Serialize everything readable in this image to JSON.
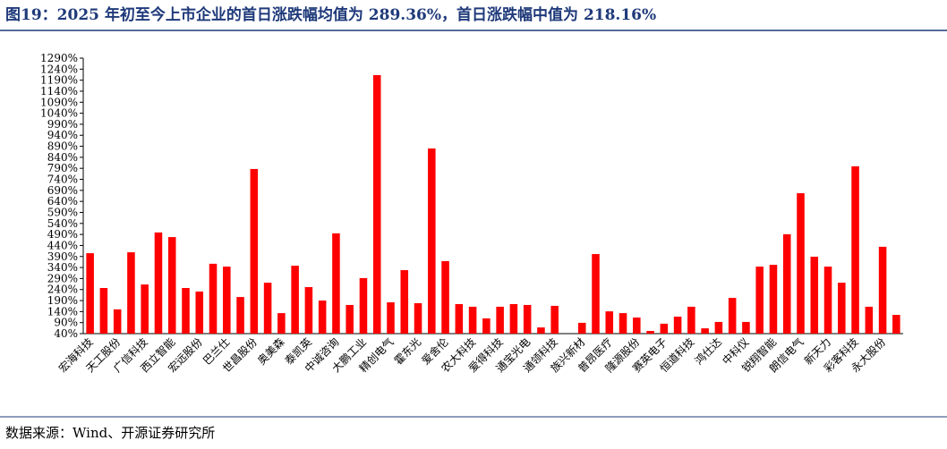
{
  "chart_data": {
    "type": "bar",
    "title": "图19：2025 年初至今上市企业的首日涨跌幅均值为 289.36%，首日涨跌幅中值为 218.16%",
    "source": "数据来源：Wind、开源证券研究所",
    "categories": [
      "宏海科技",
      null,
      "天工股份",
      null,
      "广信科技",
      null,
      "西立智能",
      null,
      "宏远股份",
      null,
      "巴兰仕",
      null,
      "世昌股份",
      null,
      "奥美森",
      null,
      "泰凯英",
      null,
      "中诚咨询",
      null,
      "大鹏工业",
      null,
      "精创电气",
      null,
      "霍东光",
      null,
      "爱舍伦",
      null,
      "农大科技",
      null,
      "爱得科技",
      null,
      "通宝光电",
      null,
      "通领科技",
      null,
      "族兴新材",
      null,
      "普昂医疗",
      null,
      "隆源股份",
      null,
      "赛英电子",
      null,
      "恒道科技",
      null,
      "鸿仕达",
      null,
      "中科仪",
      null,
      "锐翔智能",
      null,
      "朗信电气",
      null,
      "新天力",
      null,
      "彩客科技",
      null,
      "永大股份",
      null
    ],
    "values": [
      405,
      247,
      150,
      409,
      263,
      499,
      478,
      247,
      231,
      357,
      344,
      206,
      787,
      271,
      133,
      348,
      251,
      190,
      495,
      170,
      292,
      1213,
      182,
      328,
      178,
      880,
      369,
      174,
      162,
      109,
      162,
      174,
      170,
      68,
      166,
      40,
      89,
      401,
      141,
      133,
      113,
      52,
      85,
      117,
      162,
      64,
      93,
      202,
      93,
      344,
      352,
      491,
      677,
      389,
      344,
      271,
      799,
      162,
      434,
      125
    ],
    "color": "#ff0000",
    "ylim": [
      40,
      1290
    ],
    "yticks": [
      {
        "value": 40,
        "label": "40%"
      },
      {
        "value": 90,
        "label": "90%"
      },
      {
        "value": 140,
        "label": "140%"
      },
      {
        "value": 190,
        "label": "190%"
      },
      {
        "value": 240,
        "label": "240%"
      },
      {
        "value": 290,
        "label": "290%"
      },
      {
        "value": 340,
        "label": "340%"
      },
      {
        "value": 390,
        "label": "390%"
      },
      {
        "value": 440,
        "label": "440%"
      },
      {
        "value": 490,
        "label": "490%"
      },
      {
        "value": 540,
        "label": "540%"
      },
      {
        "value": 590,
        "label": "590%"
      },
      {
        "value": 640,
        "label": "640%"
      },
      {
        "value": 690,
        "label": "690%"
      },
      {
        "value": 740,
        "label": "740%"
      },
      {
        "value": 790,
        "label": "790%"
      },
      {
        "value": 840,
        "label": "840%"
      },
      {
        "value": 890,
        "label": "890%"
      },
      {
        "value": 940,
        "label": "940%"
      },
      {
        "value": 990,
        "label": "990%"
      },
      {
        "value": 1040,
        "label": "1040%"
      },
      {
        "value": 1090,
        "label": "1090%"
      },
      {
        "value": 1140,
        "label": "1140%"
      },
      {
        "value": 1190,
        "label": "1190%"
      },
      {
        "value": 1240,
        "label": "1240%"
      },
      {
        "value": 1290,
        "label": "1290%"
      }
    ]
  }
}
